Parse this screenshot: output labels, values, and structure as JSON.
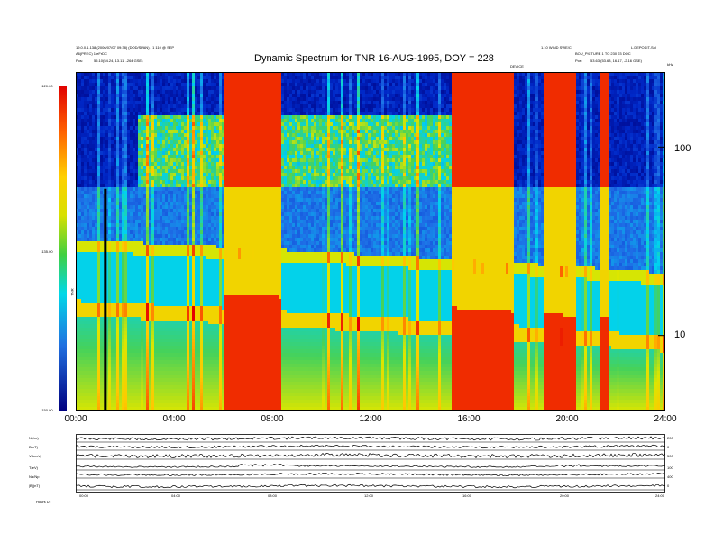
{
  "header": {
    "left_line1": "19.0.0.1.138 (2006/07/07 09:38) (DOD/SPAN) - 1 110 @ SEP",
    "left_line2": "A6(PREC) 1 eFrDC",
    "left_pos_label": "Pos:",
    "left_pos_value": "55.10(54.24, 13.11, -264 GSE)",
    "right_line1": "1.10 WIND SWE/C",
    "right_line2": "L.DEPOSIT-Sol",
    "right_line3": "BOU_PICTURE 1 TO 230 23 DOC",
    "right_pos_label": "Pos:",
    "right_pos_value": "53.63 (53.63, 16.17, -2.16 GSE)",
    "center_tag": "DEVICE",
    "corner_tag": "kHz"
  },
  "colorbar": {
    "ticks": [
      "-120.00",
      "-135.00",
      "-150.00"
    ],
    "axis_label": "TNR"
  },
  "chart_data": {
    "type": "heatmap",
    "title": "Dynamic Spectrum for TNR 16-AUG-1995, DOY = 228",
    "xlabel": "",
    "ylabel": "kHz",
    "x_ticks": [
      "00:00",
      "04:00",
      "08:00",
      "12:00",
      "16:00",
      "20:00",
      "24:00"
    ],
    "xlim_hours": [
      0,
      24
    ],
    "y_scale": "log",
    "ylim_khz": [
      4,
      250
    ],
    "y_ticks": [
      "100",
      "10"
    ],
    "value_range_db": [
      -150,
      -120
    ],
    "features": {
      "lower_emission_band_khz_start": 30,
      "lower_emission_band_khz_end": 20,
      "plasma_line_khz_start": 14,
      "plasma_line_khz_end": 9,
      "dark_region_above_khz": 60,
      "intense_bursts_hours": [
        [
          6.0,
          8.3
        ],
        [
          15.3,
          17.8
        ],
        [
          19.0,
          20.3
        ],
        [
          21.3,
          21.6
        ]
      ]
    }
  },
  "lower_panels": {
    "left_labels": [
      "N(/cc)",
      "B(nT)",
      "V(km/s)",
      "T(eV)",
      "Nα/Np",
      "|B|(nT)"
    ],
    "right_labels": [
      "200",
      "0",
      "500",
      "100",
      "400",
      "0"
    ],
    "x_ticks": [
      "00:00",
      "04:00",
      "08:00",
      "12:00",
      "16:00",
      "20:00",
      "24:00"
    ],
    "footer_left": "Hours  UT"
  }
}
